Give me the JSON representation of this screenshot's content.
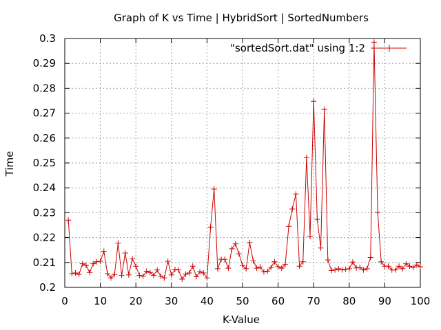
{
  "chart_data": {
    "type": "line",
    "title": "Graph of K vs Time | HybridSort | SortedNumbers",
    "xlabel": "K-Value",
    "ylabel": "Time",
    "xlim": [
      0,
      100
    ],
    "ylim": [
      0.2,
      0.3
    ],
    "xticks": [
      0,
      10,
      20,
      30,
      40,
      50,
      60,
      70,
      80,
      90,
      100
    ],
    "yticks": [
      0.2,
      0.21,
      0.22,
      0.23,
      0.24,
      0.25,
      0.26,
      0.27,
      0.28,
      0.29,
      0.3
    ],
    "grid": true,
    "legend_position": "top-right",
    "series": [
      {
        "name": "\"sortedSort.dat\" using 1:2",
        "color": "#cc0000",
        "marker": "plus",
        "x": [
          1,
          2,
          3,
          4,
          5,
          6,
          7,
          8,
          9,
          10,
          11,
          12,
          13,
          14,
          15,
          16,
          17,
          18,
          19,
          20,
          21,
          22,
          23,
          24,
          25,
          26,
          27,
          28,
          29,
          30,
          31,
          32,
          33,
          34,
          35,
          36,
          37,
          38,
          39,
          40,
          41,
          42,
          43,
          44,
          45,
          46,
          47,
          48,
          49,
          50,
          51,
          52,
          53,
          54,
          55,
          56,
          57,
          58,
          59,
          60,
          61,
          62,
          63,
          64,
          65,
          66,
          67,
          68,
          69,
          70,
          71,
          72,
          73,
          74,
          75,
          76,
          77,
          78,
          79,
          80,
          81,
          82,
          83,
          84,
          85,
          86,
          87,
          88,
          89,
          90,
          91,
          92,
          93,
          94,
          95,
          96,
          97,
          98,
          99,
          100
        ],
        "y": [
          0.227,
          0.2055,
          0.2058,
          0.2052,
          0.2095,
          0.2088,
          0.206,
          0.2095,
          0.2103,
          0.2105,
          0.2145,
          0.2055,
          0.2038,
          0.2052,
          0.2178,
          0.2048,
          0.2138,
          0.205,
          0.2115,
          0.2085,
          0.2048,
          0.2045,
          0.2065,
          0.206,
          0.2048,
          0.207,
          0.2045,
          0.2038,
          0.2105,
          0.205,
          0.2072,
          0.207,
          0.2033,
          0.2053,
          0.2058,
          0.2085,
          0.2043,
          0.2063,
          0.2058,
          0.2038,
          0.2242,
          0.2395,
          0.2075,
          0.2113,
          0.2113,
          0.2077,
          0.2155,
          0.2175,
          0.2135,
          0.2088,
          0.2075,
          0.218,
          0.2107,
          0.2077,
          0.2082,
          0.2062,
          0.2065,
          0.208,
          0.2103,
          0.2083,
          0.2077,
          0.2092,
          0.2245,
          0.2315,
          0.2375,
          0.2085,
          0.2103,
          0.2522,
          0.2205,
          0.2748,
          0.2273,
          0.2158,
          0.2715,
          0.211,
          0.2068,
          0.207,
          0.2075,
          0.207,
          0.2073,
          0.2075,
          0.2102,
          0.2078,
          0.208,
          0.207,
          0.2075,
          0.212,
          0.2985,
          0.2302,
          0.2103,
          0.2085,
          0.2085,
          0.207,
          0.207,
          0.2085,
          0.2075,
          0.2095,
          0.2085,
          0.208,
          0.209,
          0.2083
        ]
      }
    ]
  }
}
